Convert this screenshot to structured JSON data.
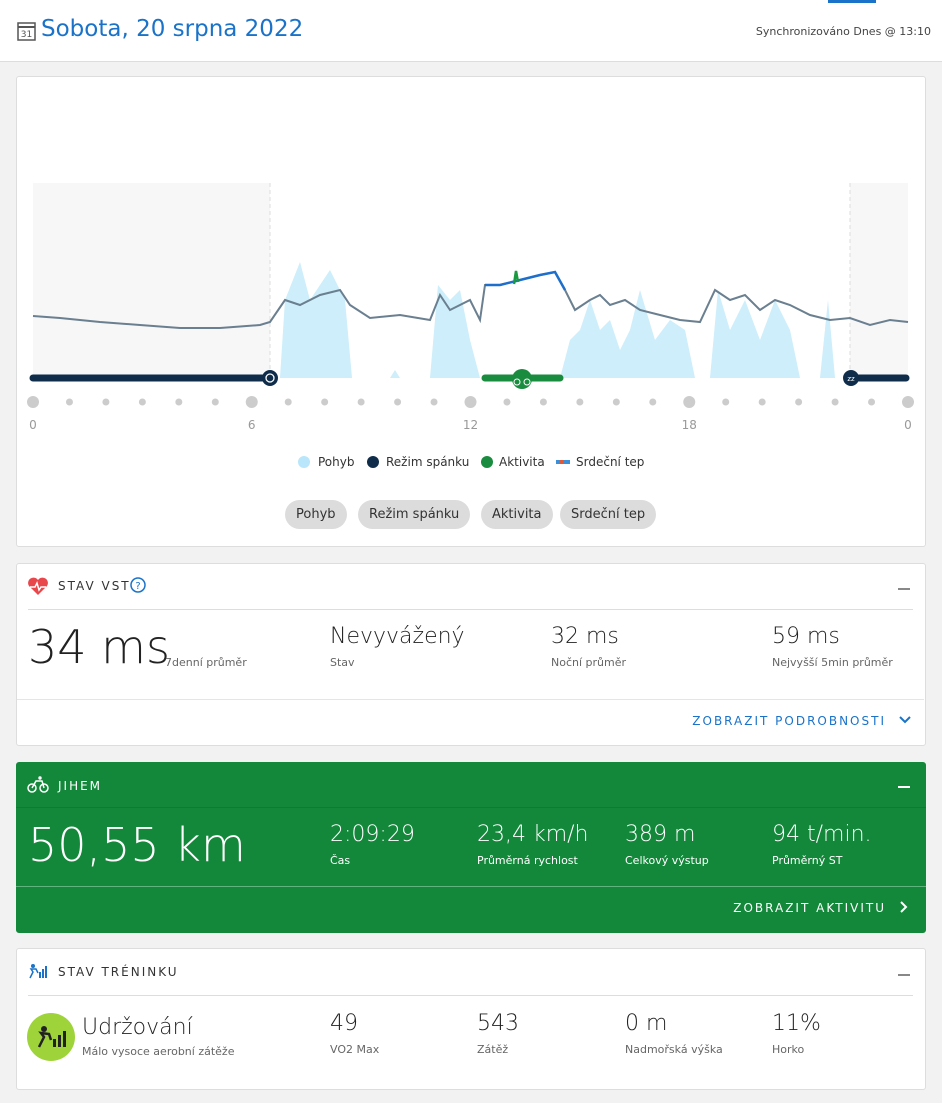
{
  "header": {
    "title": "Sobota, 20 srpna 2022",
    "sync": "Synchronizováno Dnes @ 13:10",
    "calendar_day": "31"
  },
  "timeline": {
    "hour_labels": [
      "0",
      "6",
      "12",
      "18",
      "0"
    ],
    "legend": [
      "Pohyb",
      "Režim spánku",
      "Aktivita",
      "Srdeční tep"
    ],
    "buttons": [
      "Pohyb",
      "Režim spánku",
      "Aktivita",
      "Srdeční tep"
    ]
  },
  "hrv": {
    "title": "STAV VST",
    "value": "34 ms",
    "value_caption": "7denní průměr",
    "stats": [
      {
        "value": "Nevyvážený",
        "label": "Stav"
      },
      {
        "value": "32 ms",
        "label": "Noční průměr"
      },
      {
        "value": "59 ms",
        "label": "Nejvyšší 5min průměr"
      }
    ],
    "link": "ZOBRAZIT PODROBNOSTI"
  },
  "activity": {
    "title": "JIHEM",
    "value": "50,55 km",
    "stats": [
      {
        "value": "2:09:29",
        "label": "Čas"
      },
      {
        "value": "23,4 km/h",
        "label": "Průměrná rychlost"
      },
      {
        "value": "389 m",
        "label": "Celkový výstup"
      },
      {
        "value": "94 t/min.",
        "label": "Průměrný ST"
      }
    ],
    "link": "ZOBRAZIT AKTIVITU"
  },
  "training": {
    "title": "STAV TRÉNINKU",
    "status": "Udržování",
    "status_caption": "Málo vysoce aerobní zátěže",
    "stats": [
      {
        "value": "49",
        "label": "VO2 Max"
      },
      {
        "value": "543",
        "label": "Zátěž"
      },
      {
        "value": "0 m",
        "label": "Nadmořská výška"
      },
      {
        "value": "11%",
        "label": "Horko"
      }
    ]
  }
}
